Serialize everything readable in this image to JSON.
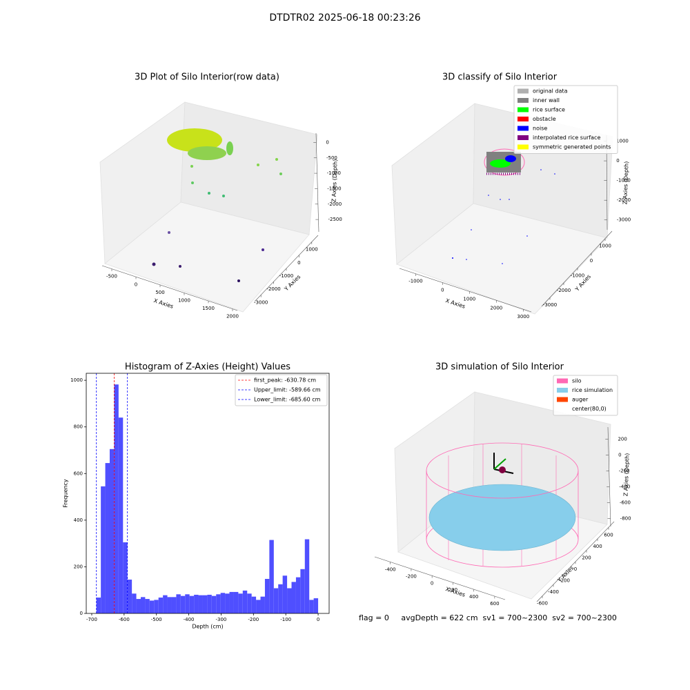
{
  "title": "DTDTR02 2025-06-18 00:23:26",
  "annotation": "flag = 0     avgDepth = 622 cm  sv1 = 700~2300  sv2 = 700~2300",
  "chart_data": [
    {
      "type": "scatter3d",
      "title": "3D Plot of Silo Interior(row data)",
      "x_label": "X Axies",
      "y_label": "Y Axies",
      "z_label": "Z Axies (Depth)",
      "xlim": [
        -700,
        2100
      ],
      "xticks": [
        -500,
        0,
        500,
        1000,
        1500,
        2000
      ],
      "ylim": [
        -3500,
        1500
      ],
      "yticks": [
        -3000,
        -2000,
        -1000,
        0,
        1000
      ],
      "zlim": [
        -2900,
        300
      ],
      "zticks": [
        0,
        -500,
        -1000,
        -1500,
        -2000,
        -2500
      ]
    },
    {
      "type": "scatter3d",
      "title": "3D classify of Silo Interior",
      "x_label": "X Axies",
      "y_label": "Y Axies",
      "z_label": "Z Axies (Depth)",
      "xlim": [
        -1600,
        3300
      ],
      "xticks": [
        -1000,
        0,
        1000,
        2000,
        3000
      ],
      "ylim": [
        -3600,
        1500
      ],
      "yticks": [
        -3000,
        -2000,
        -1000,
        0,
        1000
      ],
      "zlim": [
        -3500,
        1300
      ],
      "zticks": [
        1000,
        0,
        -1000,
        -2000,
        -3000
      ],
      "legend": [
        {
          "name": "original data",
          "color": "#b0b0b0"
        },
        {
          "name": "inner wall",
          "color": "#808080"
        },
        {
          "name": "rice surface",
          "color": "#00ff00"
        },
        {
          "name": "obstacle",
          "color": "#ff0000"
        },
        {
          "name": "noise",
          "color": "#0000ff"
        },
        {
          "name": "interpolated rice surface",
          "color": "#800080"
        },
        {
          "name": "symmetric generated points",
          "color": "#ffff00"
        }
      ]
    },
    {
      "type": "histogram",
      "title": "Histogram of Z-Axies (Height) Values",
      "x_label": "Depth (cm)",
      "y_label": "Frequency",
      "color": "#4f4fff",
      "bins": [
        -685.6,
        -671.888,
        -658.176,
        -644.464,
        -630.752,
        -617.04,
        -603.328,
        -589.616,
        -575.904,
        -562.192,
        -548.48,
        -534.768,
        -521.056,
        -507.344,
        -493.632,
        -479.92,
        -466.208,
        -452.496,
        -438.784,
        -425.072,
        -411.36,
        -397.648,
        -383.936,
        -370.224,
        -356.512,
        -342.8,
        -329.088,
        -315.376,
        -301.664,
        -287.952,
        -274.24,
        -260.528,
        -246.816,
        -233.104,
        -219.392,
        -205.68,
        -191.968,
        -178.256,
        -164.544,
        -150.832,
        -137.12,
        -123.408,
        -109.696,
        -95.984,
        -82.272,
        -68.56,
        -54.848,
        -41.136,
        -27.424,
        -13.712,
        0
      ],
      "values": [
        68,
        545,
        645,
        705,
        982,
        840,
        305,
        145,
        85,
        62,
        70,
        62,
        55,
        58,
        68,
        78,
        70,
        70,
        82,
        75,
        82,
        75,
        80,
        78,
        78,
        80,
        75,
        82,
        88,
        85,
        92,
        92,
        85,
        98,
        85,
        72,
        58,
        72,
        148,
        315,
        108,
        125,
        162,
        108,
        135,
        155,
        190,
        318,
        58,
        65
      ],
      "lines": [
        {
          "name": "first_peak: -630.78 cm",
          "value": -630.78,
          "color": "#ff0000"
        },
        {
          "name": "Upper_limit: -589.66 cm",
          "value": -589.66,
          "color": "#0000ff"
        },
        {
          "name": "Lower_limit: -685.60 cm",
          "value": -685.6,
          "color": "#0000ff"
        }
      ],
      "xlim": [
        -717,
        34
      ],
      "xticks": [
        -700,
        -600,
        -500,
        -400,
        -300,
        -200,
        -100,
        0
      ],
      "ylim": [
        0,
        1030
      ],
      "yticks": [
        0,
        200,
        400,
        600,
        800,
        1000
      ]
    },
    {
      "type": "surface3d",
      "title": "3D simulation of Silo Interior",
      "x_label": "X Axies",
      "y_label": "Y Axies",
      "z_label": "Z Axies (Depth)",
      "xlim": [
        -550,
        700
      ],
      "xticks": [
        -400,
        -200,
        0,
        200,
        400,
        600
      ],
      "ylim": [
        -700,
        700
      ],
      "yticks": [
        -600,
        -400,
        -200,
        0,
        200,
        400,
        600
      ],
      "zlim": [
        -900,
        350
      ],
      "zticks": [
        200,
        0,
        -200,
        -400,
        -600,
        -800
      ],
      "legend": [
        {
          "name": "silo",
          "color": "#ff69b4"
        },
        {
          "name": "rice simulation",
          "color": "#87ceeb"
        },
        {
          "name": "auger",
          "color": "#ff4500"
        },
        {
          "name": "center(80,0)",
          "color": "#ffffff"
        }
      ]
    }
  ]
}
